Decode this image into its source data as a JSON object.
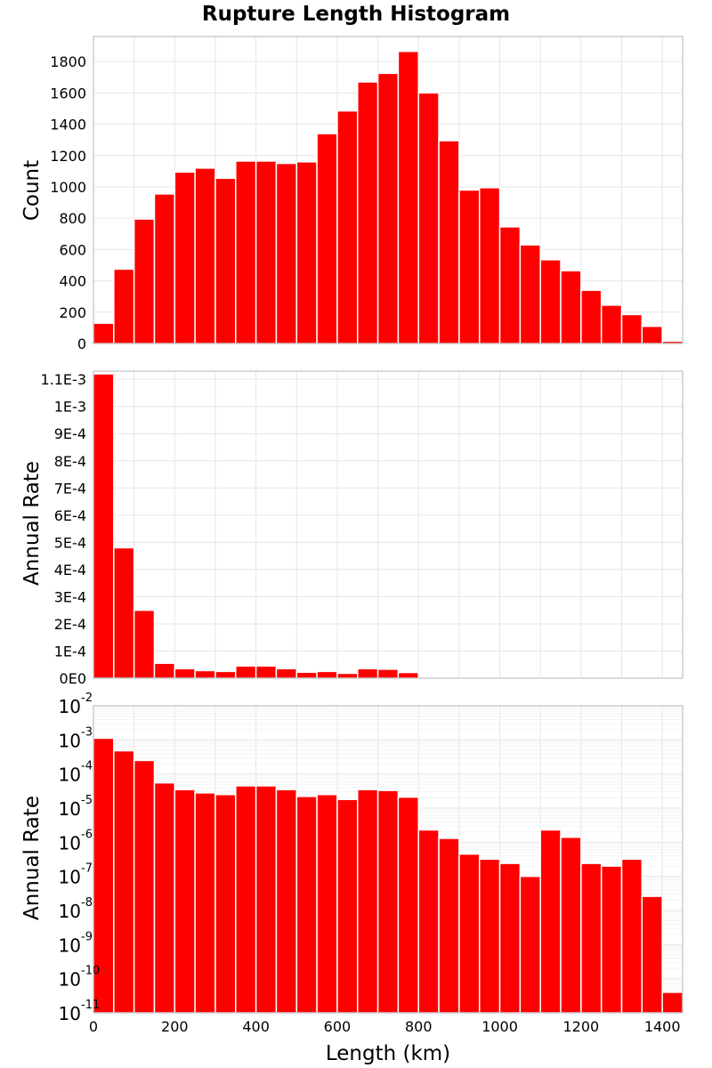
{
  "figure_title": "Rupture Length Histogram",
  "colors": {
    "bar": "#ff0000",
    "grid": "#e6e6e6",
    "frame": "#b3b3b3"
  },
  "chart_data": [
    {
      "type": "bar",
      "panel": "top",
      "title": "Rupture Length Histogram",
      "xlabel": "",
      "ylabel": "Count",
      "xlim": [
        0,
        1450
      ],
      "ylim": [
        0,
        1960
      ],
      "bin_width": 50,
      "x": [
        0,
        50,
        100,
        150,
        200,
        250,
        300,
        350,
        400,
        450,
        500,
        550,
        600,
        650,
        700,
        750,
        800,
        850,
        900,
        950,
        1000,
        1050,
        1100,
        1150,
        1200,
        1250,
        1300,
        1350,
        1400
      ],
      "values": [
        130,
        475,
        795,
        955,
        1095,
        1120,
        1055,
        1165,
        1165,
        1150,
        1160,
        1340,
        1485,
        1670,
        1725,
        1865,
        1600,
        1295,
        980,
        995,
        745,
        630,
        535,
        465,
        340,
        245,
        185,
        110,
        15
      ],
      "y_ticks": [
        0,
        200,
        400,
        600,
        800,
        1000,
        1200,
        1400,
        1600,
        1800
      ],
      "y_tick_labels": [
        "0",
        "200",
        "400",
        "600",
        "800",
        "1000",
        "1200",
        "1400",
        "1600",
        "1800"
      ],
      "grid": true
    },
    {
      "type": "bar",
      "panel": "middle",
      "xlabel": "",
      "ylabel": "Annual Rate",
      "xlim": [
        0,
        1450
      ],
      "ylim": [
        0,
        0.00113
      ],
      "bin_width": 50,
      "x": [
        0,
        50,
        100,
        150,
        200,
        250,
        300,
        350,
        400,
        450,
        500,
        550,
        600,
        650,
        700,
        750,
        800,
        850,
        900,
        950,
        1000,
        1050,
        1100,
        1150,
        1200,
        1250,
        1300,
        1350,
        1400
      ],
      "values": [
        0.00112,
        0.00048,
        0.00025,
        5.5e-05,
        3.5e-05,
        2.8e-05,
        2.5e-05,
        4.5e-05,
        4.5e-05,
        3.5e-05,
        2.2e-05,
        2.5e-05,
        1.8e-05,
        3.5e-05,
        3.3e-05,
        2.1e-05,
        2.3e-06,
        1.3e-06,
        4.5e-07,
        3.2e-07,
        2.4e-07,
        1e-07,
        2.3e-06,
        1.4e-06,
        2.4e-07,
        2e-07,
        3.2e-07,
        2.6e-08,
        4e-11
      ],
      "y_ticks": [
        0,
        0.0001,
        0.0002,
        0.0003,
        0.0004,
        0.0005,
        0.0006,
        0.0007,
        0.0008,
        0.0009,
        0.001,
        0.0011
      ],
      "y_tick_labels": [
        "0E0",
        "1E-4",
        "2E-4",
        "3E-4",
        "4E-4",
        "5E-4",
        "6E-4",
        "7E-4",
        "8E-4",
        "9E-4",
        "1E-3",
        "1.1E-3"
      ],
      "grid": true
    },
    {
      "type": "bar",
      "panel": "bottom",
      "xlabel": "Length (km)",
      "ylabel": "Annual Rate",
      "xlim": [
        0,
        1450
      ],
      "ylim": [
        1e-11,
        0.01
      ],
      "y_scale": "log",
      "bin_width": 50,
      "x": [
        0,
        50,
        100,
        150,
        200,
        250,
        300,
        350,
        400,
        450,
        500,
        550,
        600,
        650,
        700,
        750,
        800,
        850,
        900,
        950,
        1000,
        1050,
        1100,
        1150,
        1200,
        1250,
        1300,
        1350,
        1400
      ],
      "values": [
        0.00112,
        0.00048,
        0.00025,
        5.5e-05,
        3.5e-05,
        2.8e-05,
        2.5e-05,
        4.5e-05,
        4.5e-05,
        3.5e-05,
        2.2e-05,
        2.5e-05,
        1.8e-05,
        3.5e-05,
        3.3e-05,
        2.1e-05,
        2.3e-06,
        1.3e-06,
        4.5e-07,
        3.2e-07,
        2.4e-07,
        1e-07,
        2.3e-06,
        1.4e-06,
        2.4e-07,
        2e-07,
        3.2e-07,
        2.6e-08,
        4e-11
      ],
      "y_ticks": [
        1e-11,
        1e-10,
        1e-09,
        1e-08,
        1e-07,
        1e-06,
        1e-05,
        0.0001,
        0.001,
        0.01
      ],
      "y_tick_base": "10",
      "y_tick_exponents": [
        "-11",
        "-10",
        "-9",
        "-8",
        "-7",
        "-6",
        "-5",
        "-4",
        "-3",
        "-2"
      ],
      "x_ticks": [
        0,
        200,
        400,
        600,
        800,
        1000,
        1200,
        1400
      ],
      "x_tick_labels": [
        "0",
        "200",
        "400",
        "600",
        "800",
        "1000",
        "1200",
        "1400"
      ],
      "grid": true
    }
  ]
}
